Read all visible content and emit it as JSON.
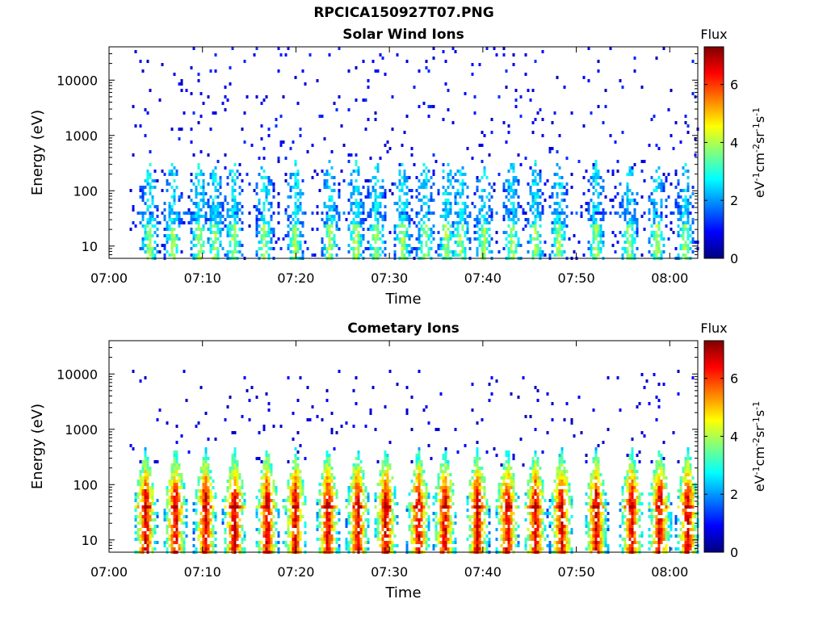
{
  "figure": {
    "title": "RPCICA150927T07.PNG"
  },
  "colormap": {
    "name": "jet",
    "stops": [
      "#00007f",
      "#0000ff",
      "#007fff",
      "#00ffff",
      "#7fff7f",
      "#ffff00",
      "#ff7f00",
      "#ff0000",
      "#7f0000"
    ]
  },
  "chart_data": [
    {
      "type": "heatmap",
      "title": "Solar Wind Ions",
      "xlabel": "Time",
      "ylabel": "Energy (eV)",
      "x_ticks": [
        "07:00",
        "07:10",
        "07:20",
        "07:30",
        "07:40",
        "07:50",
        "08:00"
      ],
      "x_range_minutes": [
        0,
        63
      ],
      "y_scale": "log",
      "y_ticks": [
        "10",
        "100",
        "1000",
        "10000"
      ],
      "y_range": [
        6,
        40000
      ],
      "colorbar": {
        "title": "Flux",
        "label": "eV-1cm-2sr-1s-1",
        "ticks": [
          "0",
          "2",
          "4",
          "6"
        ],
        "range": [
          0,
          7.3
        ]
      },
      "data_start_minute": 2.2,
      "max_flux": 4.8,
      "band_minutes": [
        4.2,
        6.7,
        9.5,
        11.2,
        13.2,
        16.5,
        19.8,
        23.5,
        26.3,
        28.5,
        31.3,
        33.7,
        36.0,
        37.5,
        40.0,
        43.0,
        45.5,
        48.0,
        52.0,
        55.5,
        58.5,
        61.5
      ]
    },
    {
      "type": "heatmap",
      "title": "Cometary Ions",
      "xlabel": "Time",
      "ylabel": "Energy (eV)",
      "x_ticks": [
        "07:00",
        "07:10",
        "07:20",
        "07:30",
        "07:40",
        "07:50",
        "08:00"
      ],
      "x_range_minutes": [
        0,
        63
      ],
      "y_scale": "log",
      "y_ticks": [
        "10",
        "100",
        "1000",
        "10000"
      ],
      "y_range": [
        6,
        40000
      ],
      "colorbar": {
        "title": "Flux",
        "label": "eV-1cm-2sr-1s-1",
        "ticks": [
          "0",
          "2",
          "4",
          "6"
        ],
        "range": [
          0,
          7.3
        ]
      },
      "data_start_minute": 2.2,
      "max_flux": 7.0,
      "band_minutes": [
        3.8,
        7.0,
        10.2,
        13.3,
        16.8,
        19.8,
        23.3,
        26.5,
        29.5,
        33.0,
        35.8,
        39.3,
        42.5,
        45.5,
        48.3,
        52.0,
        55.8,
        58.8,
        61.8
      ]
    }
  ]
}
